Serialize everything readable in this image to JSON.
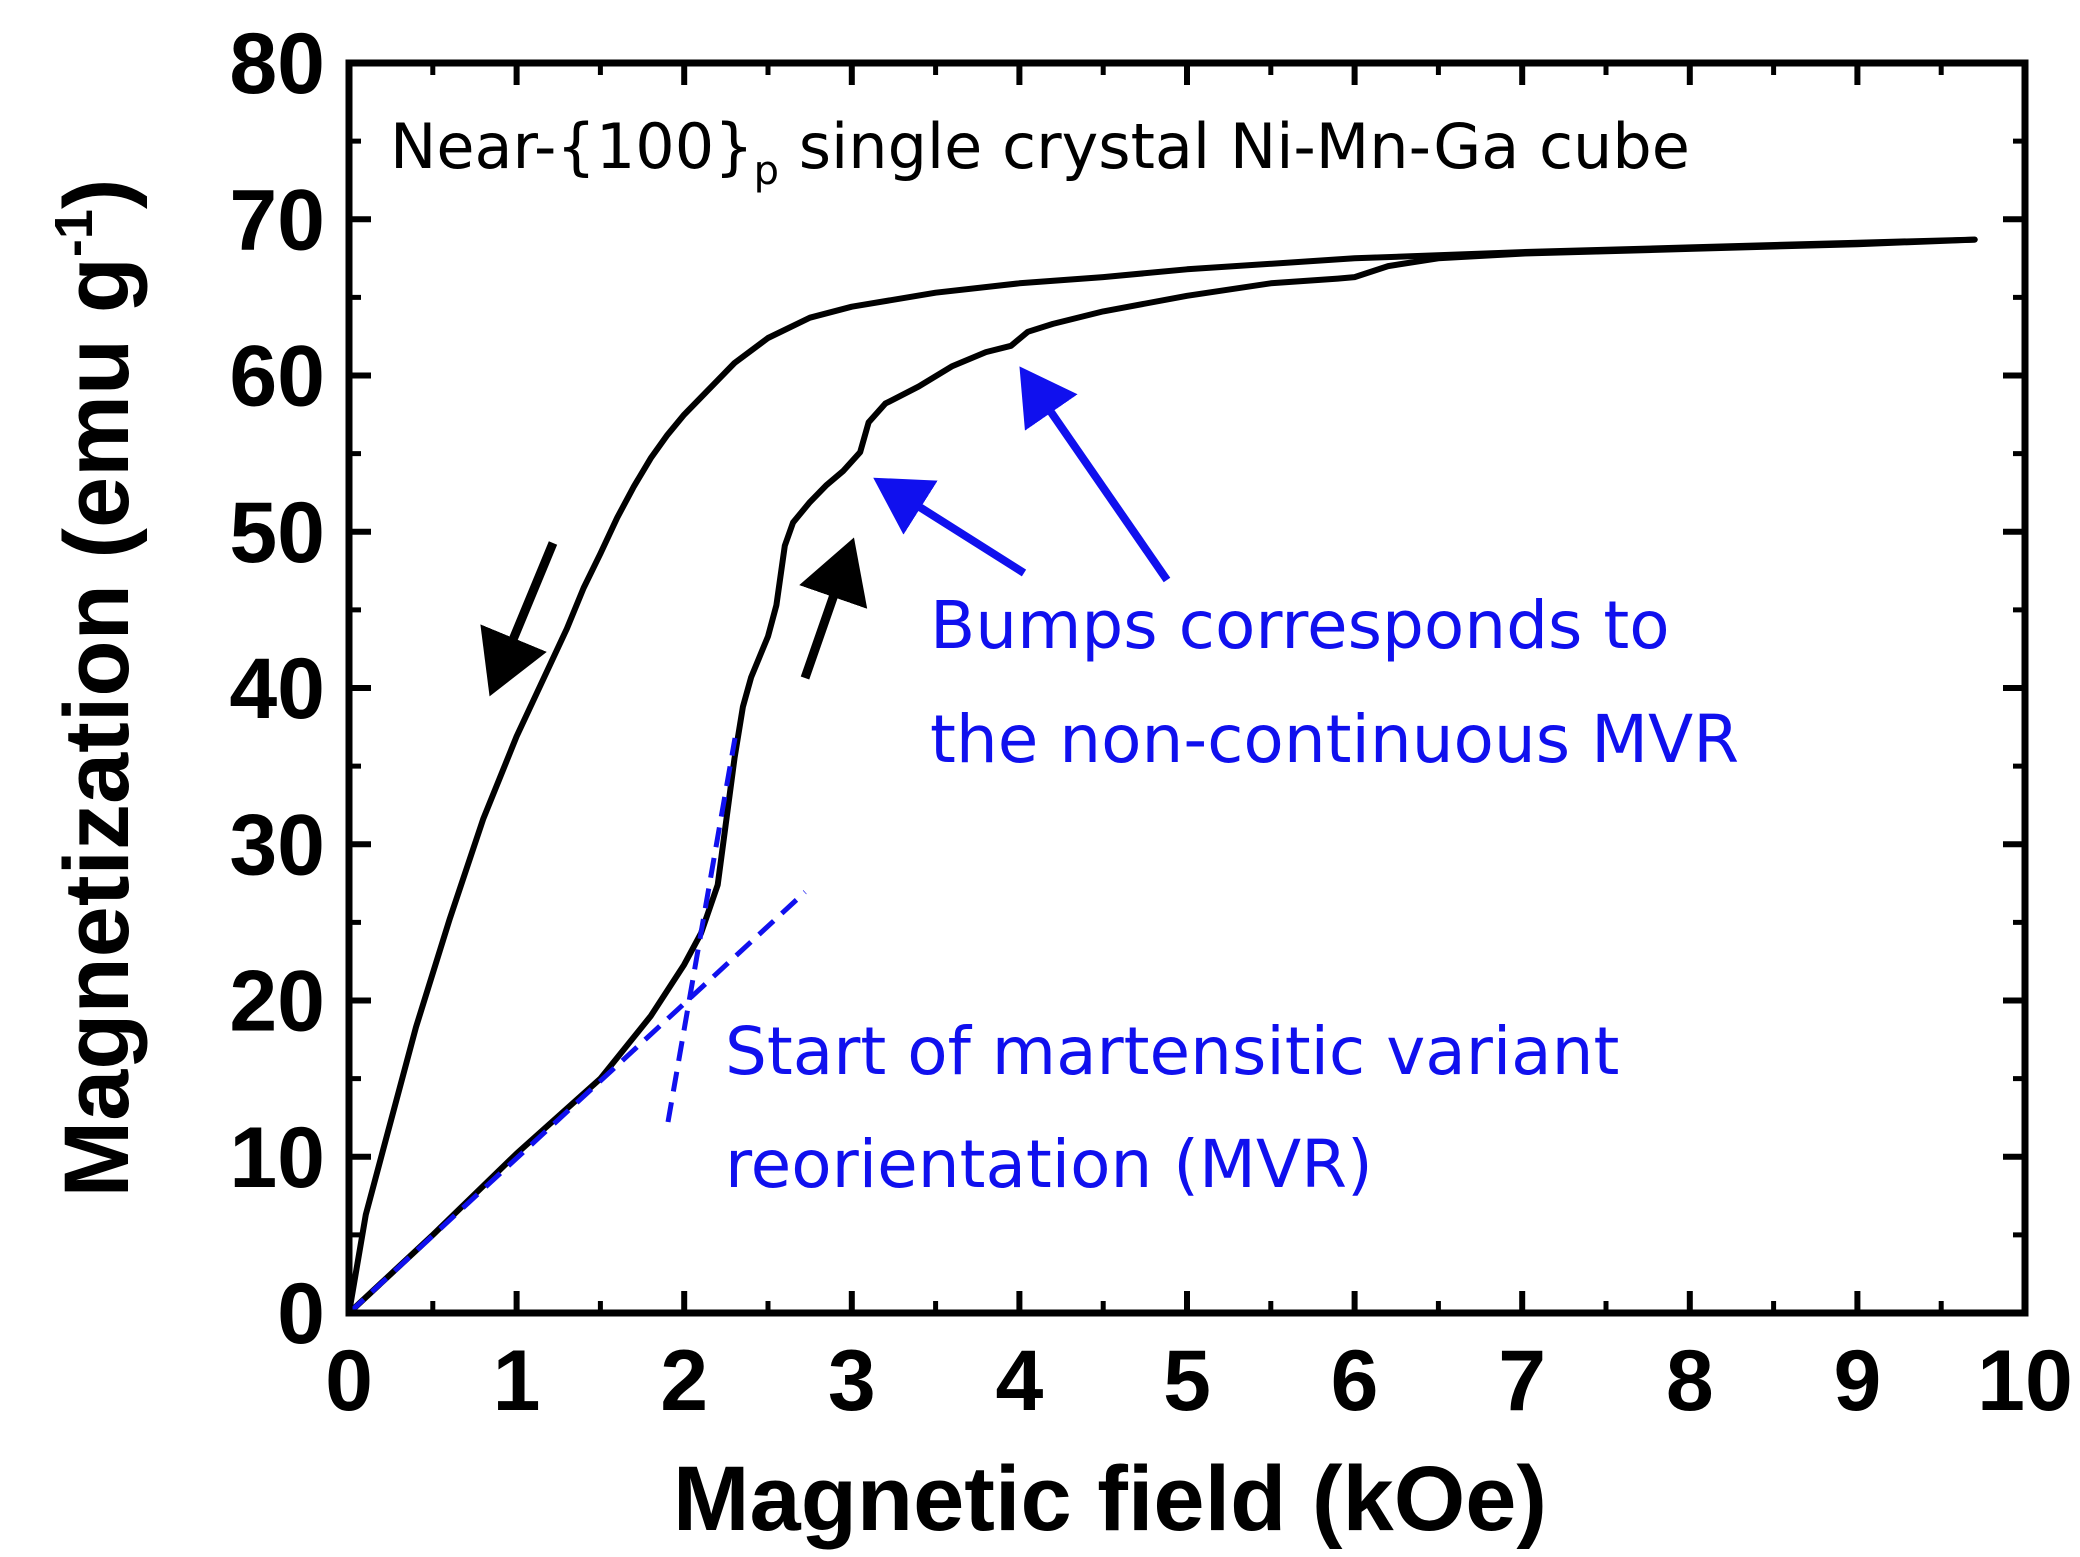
{
  "chart_data": {
    "type": "line",
    "title": "Near-{100}",
    "title_subscript": "p",
    "title_suffix": " single crystal Ni-Mn-Ga cube",
    "xlabel": "Magnetic field (kOe)",
    "ylabel_main": "Magnetization (emu g",
    "ylabel_sup": "-1",
    "ylabel_close": ")",
    "xlim": [
      0,
      10
    ],
    "ylim": [
      0,
      80
    ],
    "xticks": [
      0,
      1,
      2,
      3,
      4,
      5,
      6,
      7,
      8,
      9,
      10
    ],
    "yticks": [
      0,
      10,
      20,
      30,
      40,
      50,
      60,
      70,
      80
    ],
    "grid": false,
    "colors": {
      "curve": "#000000",
      "annotation": "#1010ee"
    },
    "series": [
      {
        "name": "Decreasing field",
        "style": "solid",
        "color": "#000000",
        "x": [
          9.7,
          9.0,
          8.0,
          7.0,
          6.0,
          5.0,
          4.5,
          4.0,
          3.5,
          3.0,
          2.75,
          2.5,
          2.3,
          2.1,
          2.0,
          1.9,
          1.8,
          1.7,
          1.6,
          1.5,
          1.4,
          1.3,
          1.2,
          1.0,
          0.8,
          0.6,
          0.4,
          0.2,
          0.1,
          0.0
        ],
        "y": [
          68.7,
          68.5,
          68.2,
          67.9,
          67.5,
          66.8,
          66.3,
          65.9,
          65.3,
          64.4,
          63.7,
          62.4,
          60.8,
          58.6,
          57.5,
          56.2,
          54.7,
          52.9,
          50.9,
          48.6,
          46.4,
          43.8,
          41.5,
          36.9,
          31.6,
          25.2,
          18.3,
          10.3,
          6.3,
          0.0
        ]
      },
      {
        "name": "Increasing field",
        "style": "solid",
        "color": "#000000",
        "x": [
          0.0,
          0.5,
          1.0,
          1.5,
          1.8,
          2.0,
          2.1,
          2.2,
          2.3,
          2.35,
          2.4,
          2.5,
          2.55,
          2.6,
          2.65,
          2.75,
          2.85,
          2.95,
          3.05,
          3.1,
          3.2,
          3.4,
          3.6,
          3.8,
          3.95,
          4.05,
          4.2,
          4.5,
          5.0,
          5.5,
          5.9,
          6.0,
          6.2,
          6.5,
          7.0,
          8.0,
          9.0,
          9.7
        ],
        "y": [
          0.0,
          5.0,
          10.2,
          15.0,
          19.0,
          22.3,
          24.3,
          27.4,
          35.5,
          38.8,
          40.7,
          43.3,
          45.3,
          49.1,
          50.6,
          51.9,
          53.0,
          53.9,
          55.1,
          57.0,
          58.2,
          59.3,
          60.6,
          61.5,
          61.9,
          62.8,
          63.3,
          64.1,
          65.1,
          65.9,
          66.2,
          66.3,
          67.0,
          67.5,
          67.8,
          68.1,
          68.4,
          68.7
        ]
      }
    ],
    "annotations": [
      {
        "text": "Bumps corresponds to",
        "role": "bumps-line-1"
      },
      {
        "text": "the non-continuous MVR",
        "role": "bumps-line-2"
      },
      {
        "text": "Start of martensitic variant",
        "role": "start-line-1"
      },
      {
        "text": "reorientation (MVR)",
        "role": "start-line-2"
      }
    ]
  }
}
